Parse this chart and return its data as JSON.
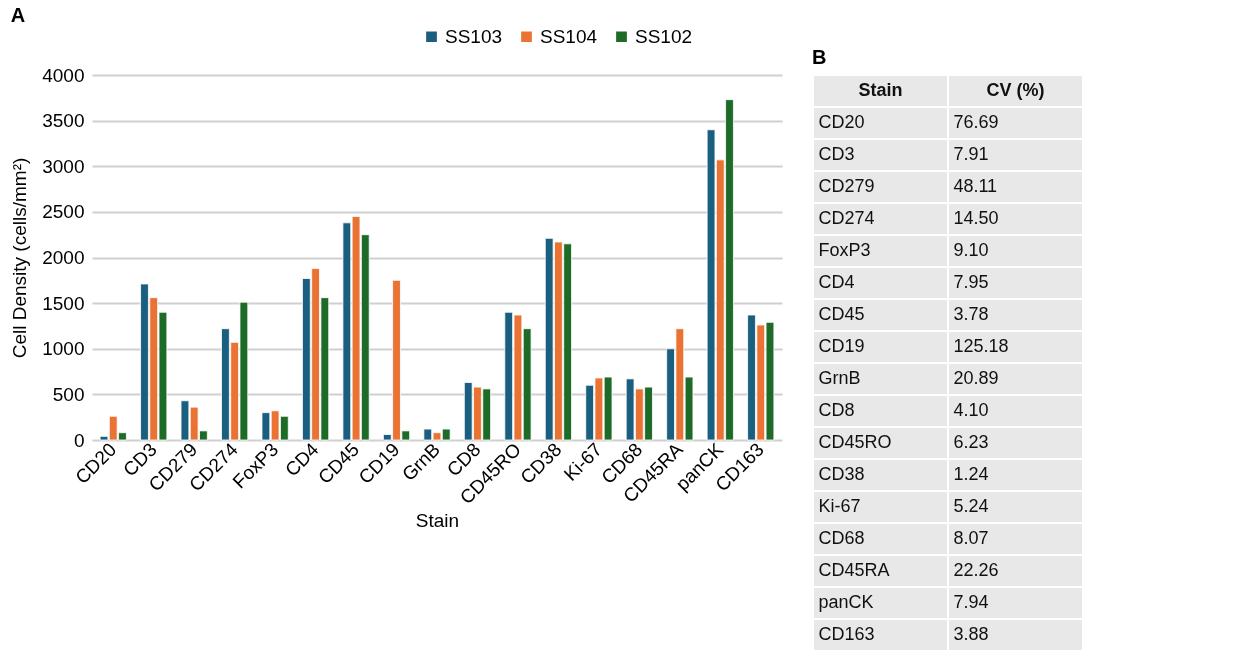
{
  "chart_data": [
    {
      "type": "bar",
      "title": "A",
      "xlabel": "Stain",
      "ylabel": "Cell Density (cells/mm²)",
      "categories": [
        "CD20",
        "CD3",
        "CD279",
        "CD274",
        "FoxP3",
        "CD4",
        "CD45",
        "CD19",
        "GrnB",
        "CD8",
        "CD45RO",
        "CD38",
        "Ki-67",
        "CD68",
        "CD45RA",
        "panCK",
        "CD163"
      ],
      "series": [
        {
          "name": "SS103",
          "color": "#1a5f80",
          "values": [
            40,
            1710,
            430,
            1220,
            300,
            1770,
            2380,
            60,
            120,
            630,
            1400,
            2210,
            600,
            670,
            1000,
            3400,
            1370
          ]
        },
        {
          "name": "SS104",
          "color": "#ea7334",
          "values": [
            260,
            1560,
            360,
            1070,
            320,
            1880,
            2450,
            1750,
            80,
            580,
            1370,
            2170,
            680,
            560,
            1220,
            3070,
            1260
          ]
        },
        {
          "name": "SS102",
          "color": "#1e6b28",
          "values": [
            80,
            1400,
            100,
            1510,
            260,
            1560,
            2250,
            100,
            120,
            560,
            1220,
            2150,
            690,
            580,
            690,
            3730,
            1290
          ]
        }
      ],
      "ylim": [
        0,
        4000
      ],
      "yticks": [
        0,
        500,
        1000,
        1500,
        2000,
        2500,
        3000,
        3500,
        4000
      ],
      "grid": "y",
      "legend": "top right"
    },
    {
      "type": "other",
      "title": "B",
      "xlabel": "Stain",
      "ylabel": "CV (%)",
      "categories": [
        "CD20",
        "CD3",
        "CD279",
        "CD274",
        "FoxP3",
        "CD4",
        "CD45",
        "CD19",
        "GrnB",
        "CD8",
        "CD45RO",
        "CD38",
        "Ki-67",
        "CD68",
        "CD45RA",
        "panCK",
        "CD163"
      ],
      "value_labels": [
        "76.69",
        "7.91",
        "48.11",
        "14.50",
        "9.10",
        "7.95",
        "3.78",
        "125.18",
        "20.89",
        "4.10",
        "6.23",
        "1.24",
        "5.24",
        "8.07",
        "22.26",
        "7.94",
        "3.88"
      ]
    }
  ]
}
